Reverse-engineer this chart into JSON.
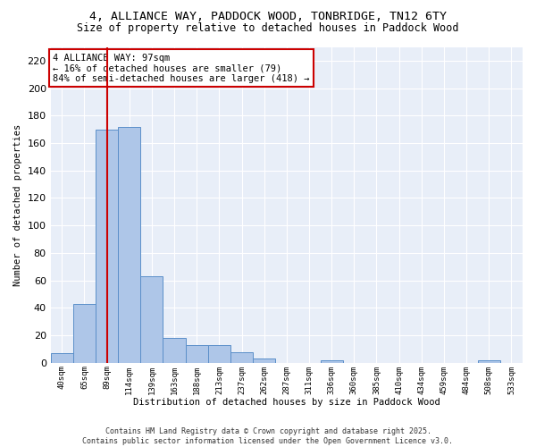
{
  "title_line1": "4, ALLIANCE WAY, PADDOCK WOOD, TONBRIDGE, TN12 6TY",
  "title_line2": "Size of property relative to detached houses in Paddock Wood",
  "xlabel": "Distribution of detached houses by size in Paddock Wood",
  "ylabel": "Number of detached properties",
  "categories": [
    "40sqm",
    "65sqm",
    "89sqm",
    "114sqm",
    "139sqm",
    "163sqm",
    "188sqm",
    "213sqm",
    "237sqm",
    "262sqm",
    "287sqm",
    "311sqm",
    "336sqm",
    "360sqm",
    "385sqm",
    "410sqm",
    "434sqm",
    "459sqm",
    "484sqm",
    "508sqm",
    "533sqm"
  ],
  "values": [
    7,
    43,
    170,
    172,
    63,
    18,
    13,
    13,
    8,
    3,
    0,
    0,
    2,
    0,
    0,
    0,
    0,
    0,
    0,
    2,
    0
  ],
  "bar_color": "#aec6e8",
  "bar_edge_color": "#5b8fc9",
  "redline_x": 2.0,
  "annotation_text": "4 ALLIANCE WAY: 97sqm\n← 16% of detached houses are smaller (79)\n84% of semi-detached houses are larger (418) →",
  "annotation_box_color": "#ffffff",
  "annotation_box_edge": "#cc0000",
  "redline_color": "#cc0000",
  "ylim": [
    0,
    230
  ],
  "yticks": [
    0,
    20,
    40,
    60,
    80,
    100,
    120,
    140,
    160,
    180,
    200,
    220
  ],
  "fig_bg_color": "#ffffff",
  "plot_bg_color": "#e8eef8",
  "grid_color": "#ffffff",
  "footer_line1": "Contains HM Land Registry data © Crown copyright and database right 2025.",
  "footer_line2": "Contains public sector information licensed under the Open Government Licence v3.0."
}
